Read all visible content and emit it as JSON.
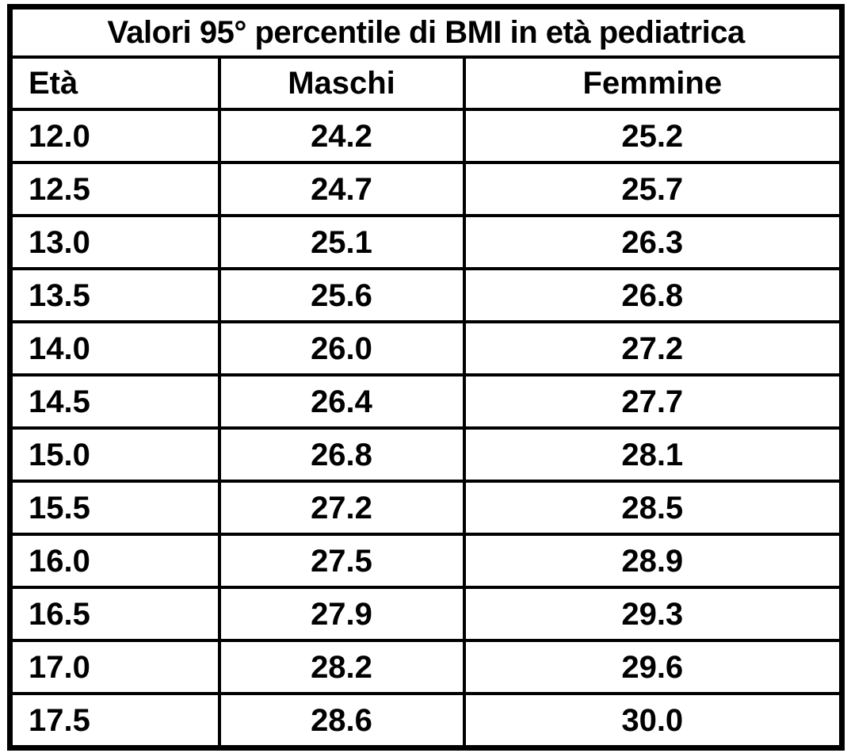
{
  "table": {
    "title": "Valori 95° percentile di BMI in età pediatrica",
    "columns": [
      "Età",
      "Maschi",
      "Femmine"
    ]
  },
  "chart_data": {
    "type": "table",
    "title": "Valori 95° percentile di BMI in età pediatrica",
    "columns": [
      "Età",
      "Maschi",
      "Femmine"
    ],
    "rows": [
      [
        "12.0",
        "24.2",
        "25.2"
      ],
      [
        "12.5",
        "24.7",
        "25.7"
      ],
      [
        "13.0",
        "25.1",
        "26.3"
      ],
      [
        "13.5",
        "25.6",
        "26.8"
      ],
      [
        "14.0",
        "26.0",
        "27.2"
      ],
      [
        "14.5",
        "26.4",
        "27.7"
      ],
      [
        "15.0",
        "26.8",
        "28.1"
      ],
      [
        "15.5",
        "27.2",
        "28.5"
      ],
      [
        "16.0",
        "27.5",
        "28.9"
      ],
      [
        "16.5",
        "27.9",
        "29.3"
      ],
      [
        "17.0",
        "28.2",
        "29.6"
      ],
      [
        "17.5",
        "28.6",
        "30.0"
      ]
    ]
  },
  "colors": {
    "border": "#000000",
    "text": "#000000",
    "background": "#ffffff"
  }
}
